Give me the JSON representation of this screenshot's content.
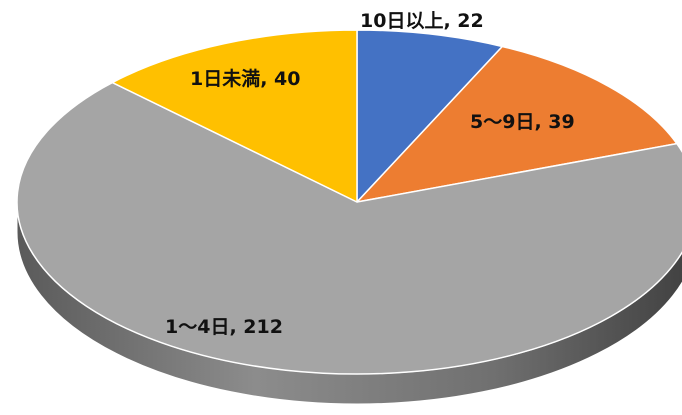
{
  "chart_data": {
    "type": "pie",
    "style": "3d",
    "start": "top",
    "direction": "clockwise",
    "slices": [
      {
        "label": "10日以上, 22",
        "value": 22,
        "color": "#4472C4",
        "side_color": "#2F528F"
      },
      {
        "label": "5〜9日, 39",
        "value": 39,
        "color": "#ED7D31",
        "side_color": "#AE5A21"
      },
      {
        "label": "1〜4日, 212",
        "value": 212,
        "color": "#A5A5A5",
        "side_color": "#6E6E6E"
      },
      {
        "label": "1日未満, 40",
        "value": 40,
        "color": "#FFC000",
        "side_color": "#BF9000"
      }
    ]
  }
}
